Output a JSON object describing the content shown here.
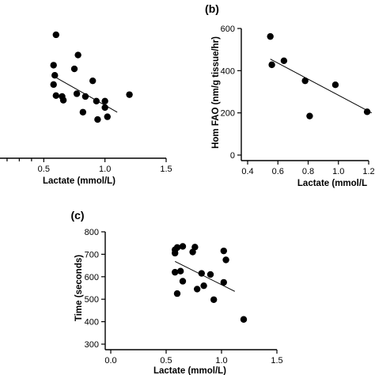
{
  "chart_data": [
    {
      "type": "scatter",
      "panel_label": "",
      "xlabel": "Lactate (mmol/L)",
      "ylabel": "",
      "xlim": [
        0.0,
        1.5
      ],
      "ylim": [
        0,
        700
      ],
      "xticks": [
        "0.5",
        "1.0",
        "1.5"
      ],
      "yticks": [],
      "points": [
        {
          "x": 0.6,
          "y": 640
        },
        {
          "x": 0.58,
          "y": 475
        },
        {
          "x": 0.59,
          "y": 420
        },
        {
          "x": 0.58,
          "y": 370
        },
        {
          "x": 0.6,
          "y": 310
        },
        {
          "x": 0.65,
          "y": 305
        },
        {
          "x": 0.66,
          "y": 285
        },
        {
          "x": 0.75,
          "y": 455
        },
        {
          "x": 0.78,
          "y": 530
        },
        {
          "x": 0.77,
          "y": 320
        },
        {
          "x": 0.82,
          "y": 220
        },
        {
          "x": 0.84,
          "y": 305
        },
        {
          "x": 0.9,
          "y": 390
        },
        {
          "x": 0.93,
          "y": 280
        },
        {
          "x": 0.94,
          "y": 180
        },
        {
          "x": 1.0,
          "y": 280
        },
        {
          "x": 1.0,
          "y": 245
        },
        {
          "x": 1.02,
          "y": 195
        },
        {
          "x": 1.2,
          "y": 315
        }
      ],
      "trendline": {
        "x": [
          0.58,
          1.1
        ],
        "y": [
          415,
          220
        ]
      },
      "grid": false,
      "legend": "none"
    },
    {
      "type": "scatter",
      "panel_label": "(b)",
      "xlabel": "Lactate (mmol/L",
      "ylabel": "Hom FAO (nm/g tissue/hr)",
      "xlim": [
        0.4,
        1.2
      ],
      "ylim": [
        0,
        600
      ],
      "xticks": [
        "0.4",
        "0.6",
        "0.8",
        "1.0",
        "1.2"
      ],
      "yticks": [
        "0",
        "200",
        "400",
        "600"
      ],
      "points": [
        {
          "x": 0.55,
          "y": 562
        },
        {
          "x": 0.56,
          "y": 428
        },
        {
          "x": 0.64,
          "y": 447
        },
        {
          "x": 0.78,
          "y": 352
        },
        {
          "x": 0.81,
          "y": 185
        },
        {
          "x": 0.98,
          "y": 333
        },
        {
          "x": 1.19,
          "y": 205
        }
      ],
      "trendline": {
        "x": [
          0.55,
          1.22
        ],
        "y": [
          455,
          200
        ]
      },
      "grid": false,
      "legend": "none"
    },
    {
      "type": "scatter",
      "panel_label": "(c)",
      "xlabel": "Lactate (mmol/L)",
      "ylabel": "Time (seconds)",
      "xlim": [
        0.0,
        1.5
      ],
      "ylim": [
        300,
        800
      ],
      "xticks": [
        "0.0",
        "0.5",
        "1.0",
        "1.5"
      ],
      "yticks": [
        "300",
        "400",
        "500",
        "600",
        "700",
        "800"
      ],
      "points": [
        {
          "x": 0.58,
          "y": 720
        },
        {
          "x": 0.58,
          "y": 705
        },
        {
          "x": 0.6,
          "y": 730
        },
        {
          "x": 0.65,
          "y": 735
        },
        {
          "x": 0.74,
          "y": 710
        },
        {
          "x": 0.76,
          "y": 732
        },
        {
          "x": 0.58,
          "y": 620
        },
        {
          "x": 0.63,
          "y": 625
        },
        {
          "x": 0.65,
          "y": 580
        },
        {
          "x": 0.6,
          "y": 525
        },
        {
          "x": 0.78,
          "y": 545
        },
        {
          "x": 0.82,
          "y": 615
        },
        {
          "x": 0.84,
          "y": 560
        },
        {
          "x": 0.9,
          "y": 610
        },
        {
          "x": 0.93,
          "y": 498
        },
        {
          "x": 1.02,
          "y": 715
        },
        {
          "x": 1.04,
          "y": 675
        },
        {
          "x": 1.02,
          "y": 575
        },
        {
          "x": 1.2,
          "y": 410
        }
      ],
      "trendline": {
        "x": [
          0.58,
          1.12
        ],
        "y": [
          668,
          535
        ]
      },
      "grid": false,
      "legend": "none"
    }
  ]
}
